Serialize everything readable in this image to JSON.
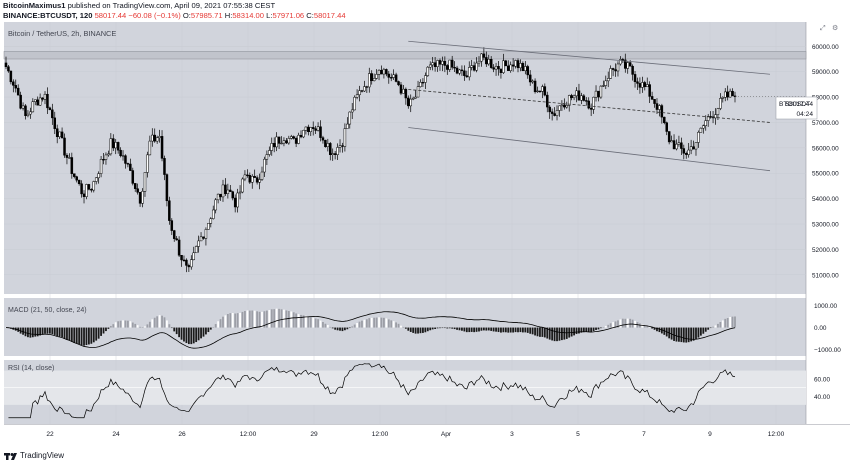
{
  "header": {
    "author": "BitcoinMaximus1",
    "published_text": "published on TradingView.com, April 09, 2021 07:55:38 CEST",
    "symbol_line": "BINANCE:BTCUSDT, 120",
    "last": "58017.44",
    "change": "−60.08 (−0.1%)",
    "o_label": "O:",
    "o": "57985.71",
    "h_label": "H:",
    "h": "58314.00",
    "l_label": "L:",
    "l": "57971.06",
    "c_label": "C:",
    "c": "58017.44"
  },
  "chart_title": "Bitcoin / TetherUS, 2h, BINANCE",
  "price_label": {
    "symbol": "BTCUSDT",
    "value": "58017.44",
    "countdown": "04:24"
  },
  "indicators": {
    "macd_title": "MACD (21, 50, close, 24)",
    "rsi_title": "RSI (14, close)"
  },
  "footer": {
    "brand": "TradingView"
  },
  "colors": {
    "pane_bg": "#d1d4dc",
    "rsi_band": "#e4e6ea",
    "candle_up": "#ffffff",
    "candle_down": "#000000",
    "grid": "#c8cbd3"
  },
  "chart_data": [
    {
      "type": "candlestick",
      "title": "Bitcoin / TetherUS, 2h, BINANCE",
      "symbol": "BTCUSDT",
      "y_ticks": [
        51000,
        52000,
        53000,
        54000,
        55000,
        56000,
        57000,
        58000,
        59000,
        60000
      ],
      "y_tick_labels": [
        "51000.00",
        "52000.00",
        "53000.00",
        "54000.00",
        "55000.00",
        "56000.00",
        "57000.00",
        "58000.00",
        "59000.00",
        "60000.00"
      ],
      "ylim": [
        50400,
        60800
      ],
      "x_tick_labels": [
        "22",
        "24",
        "26",
        "12:00",
        "29",
        "12:00",
        "Apr",
        "3",
        "5",
        "7",
        "9",
        "12:00"
      ],
      "horizontal_zone": [
        59500,
        59800
      ],
      "channel_top": {
        "start_price": 60200,
        "end_price": 58900
      },
      "channel_mid": {
        "start_price": 58300,
        "end_price": 57000
      },
      "channel_bottom": {
        "start_price": 56800,
        "end_price": 55100
      },
      "last_price": 58017.44,
      "close_path": [
        59200,
        58400,
        57200,
        57800,
        58100,
        57000,
        56000,
        55000,
        54200,
        54500,
        55500,
        56200,
        55800,
        55000,
        54000,
        56200,
        56500,
        53200,
        52000,
        51000,
        52200,
        53000,
        54000,
        54500,
        53800,
        55000,
        54600,
        55500,
        56200,
        56500,
        56200,
        56800,
        56900,
        56500,
        55800,
        56200,
        57500,
        58300,
        58800,
        59200,
        58800,
        58500,
        57600,
        58200,
        59100,
        59200,
        59300,
        59000,
        58800,
        59400,
        59500,
        59200,
        59200,
        59400,
        59100,
        58400,
        58200,
        57300,
        57800,
        58000,
        58100,
        57700,
        58400,
        59000,
        59300,
        59100,
        58600,
        58200,
        57600,
        56400,
        56000,
        55800,
        56300,
        57100,
        57500,
        58000,
        58100
      ]
    },
    {
      "type": "line",
      "title": "MACD (21, 50, close, 24)",
      "y_tick_labels": [
        "1000.00",
        "0.00",
        "−1000.00"
      ],
      "ylim": [
        -1200,
        1250
      ]
    },
    {
      "type": "line",
      "title": "RSI (14, close)",
      "y_tick_labels": [
        "60.00",
        "40.00"
      ],
      "band": [
        30,
        70
      ],
      "ylim": [
        10,
        80
      ]
    }
  ]
}
